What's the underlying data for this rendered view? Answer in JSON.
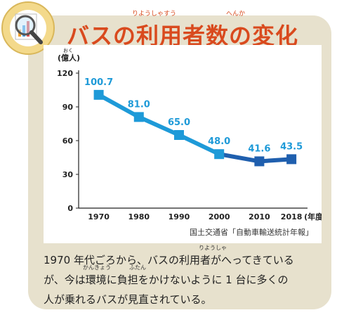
{
  "header": {
    "title": "バスの利用者数の変化",
    "ruby_riyousha": "りようしゃすう",
    "ruby_henka": "へんか"
  },
  "chart_data": {
    "type": "line",
    "title": "バスの利用者数の変化",
    "ylabel": "(億人)",
    "ylabel_ruby": "おく",
    "xlabel": "(年度)",
    "x": [
      "1970",
      "1980",
      "1990",
      "2000",
      "2010",
      "2018"
    ],
    "x_numeric": [
      1970,
      1980,
      1990,
      2000,
      2010,
      2018
    ],
    "series": [
      {
        "values": [
          100.7,
          81.0,
          65.0,
          48.0,
          41.6,
          43.5
        ],
        "labels": [
          "100.7",
          "81.0",
          "65.0",
          "48.0",
          "41.6",
          "43.5"
        ]
      }
    ],
    "yticks": [
      0,
      30,
      60,
      90,
      120
    ],
    "ylim": [
      0,
      120
    ],
    "colors": {
      "early": "#1e9ad8",
      "late": "#1f5fae",
      "label": "#1e9ad8"
    }
  },
  "source": "国土交通省「自動車輸送統計年報」",
  "caption": {
    "line1": "1970 年代ごろから、バスの利用者がへってきている",
    "line2": "が、今は環境に負担をかけないように 1 台に多くの",
    "line3": "人が乗れるバスが見直されている。",
    "ruby_riyousha": "りようしゃ",
    "ruby_kankyou": "かんきょう",
    "ruby_futan": "ふたん"
  },
  "icon": "magnifier-chart-icon"
}
